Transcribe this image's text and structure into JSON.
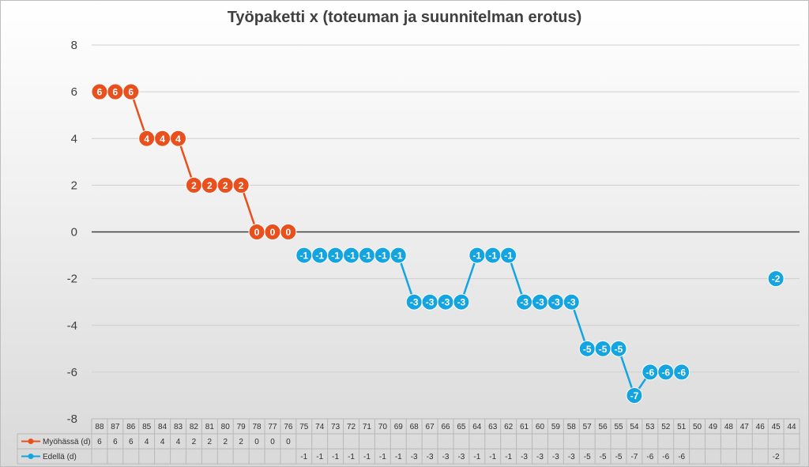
{
  "chart_data": {
    "type": "line",
    "title": "Työpaketti x (toteuman ja suunnitelman erotus)",
    "xlabel": "",
    "ylabel": "",
    "ylim": [
      -8,
      8
    ],
    "yticks": [
      "8",
      "6",
      "4",
      "2",
      "0",
      "-2",
      "-4",
      "-6",
      "-8"
    ],
    "grid": true,
    "legend": "data table below the chart",
    "categories": [
      "88",
      "87",
      "86",
      "85",
      "84",
      "83",
      "82",
      "81",
      "80",
      "79",
      "78",
      "77",
      "76",
      "75",
      "74",
      "73",
      "72",
      "71",
      "70",
      "69",
      "68",
      "67",
      "66",
      "65",
      "64",
      "63",
      "62",
      "61",
      "60",
      "59",
      "58",
      "57",
      "56",
      "55",
      "54",
      "53",
      "52",
      "51",
      "50",
      "49",
      "48",
      "47",
      "46",
      "45",
      "44"
    ],
    "series": [
      {
        "name": "Myöhässä (d)",
        "color": "#e8501e",
        "values": [
          6,
          6,
          6,
          4,
          4,
          4,
          2,
          2,
          2,
          2,
          0,
          0,
          0,
          null,
          null,
          null,
          null,
          null,
          null,
          null,
          null,
          null,
          null,
          null,
          null,
          null,
          null,
          null,
          null,
          null,
          null,
          null,
          null,
          null,
          null,
          null,
          null,
          null,
          null,
          null,
          null,
          null,
          null,
          null,
          null
        ]
      },
      {
        "name": "Edellä (d)",
        "color": "#14a5e0",
        "values": [
          null,
          null,
          null,
          null,
          null,
          null,
          null,
          null,
          null,
          null,
          null,
          null,
          null,
          -1,
          -1,
          -1,
          -1,
          -1,
          -1,
          -1,
          -3,
          -3,
          -3,
          -3,
          -1,
          -1,
          -1,
          -3,
          -3,
          -3,
          -3,
          -5,
          -5,
          -5,
          -7,
          -6,
          -6,
          -6,
          null,
          null,
          null,
          null,
          null,
          -2,
          null
        ]
      }
    ]
  }
}
